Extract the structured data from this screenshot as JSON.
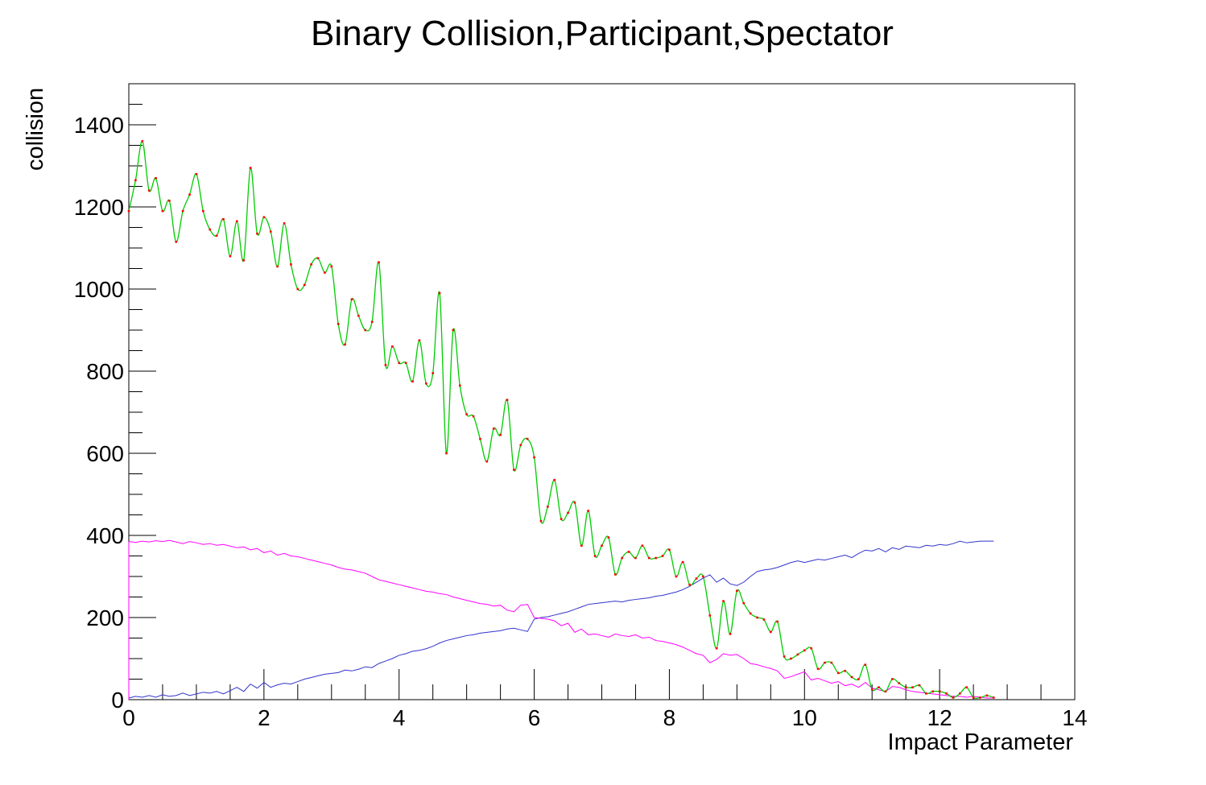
{
  "chart_data": {
    "type": "line",
    "title": "Binary Collision,Participant,Spectator",
    "xlabel": "Impact Parameter",
    "ylabel": "collision",
    "xlim": [
      0,
      14
    ],
    "ylim": [
      0,
      1500
    ],
    "x_ticks": [
      0,
      2,
      4,
      6,
      8,
      10,
      12,
      14
    ],
    "x_tick_labels": [
      "0",
      "2",
      "4",
      "6",
      "8",
      "10",
      "12",
      "14"
    ],
    "y_ticks": [
      0,
      200,
      400,
      600,
      800,
      1000,
      1200,
      1400
    ],
    "y_tick_labels": [
      "0",
      "200",
      "400",
      "600",
      "800",
      "1000",
      "1200",
      "1400"
    ],
    "grid": false,
    "legend": "none",
    "colors": {
      "binary_line": "#00cc00",
      "binary_markers": "#ff0000",
      "participant": "#ff00ff",
      "spectator": "#3333cc"
    },
    "series": [
      {
        "key": "binary",
        "style": "smooth-line-with-markers",
        "x": [
          0,
          0.1,
          0.2,
          0.3,
          0.4,
          0.5,
          0.6,
          0.7,
          0.8,
          0.9,
          1,
          1.1,
          1.2,
          1.3,
          1.4,
          1.5,
          1.6,
          1.7,
          1.8,
          1.9,
          2,
          2.1,
          2.2,
          2.3,
          2.4,
          2.5,
          2.6,
          2.7,
          2.8,
          2.9,
          3,
          3.1,
          3.2,
          3.3,
          3.4,
          3.5,
          3.6,
          3.7,
          3.8,
          3.9,
          4,
          4.1,
          4.2,
          4.3,
          4.4,
          4.5,
          4.6,
          4.7,
          4.8,
          4.9,
          5,
          5.1,
          5.2,
          5.3,
          5.4,
          5.5,
          5.6,
          5.7,
          5.8,
          5.9,
          6,
          6.1,
          6.2,
          6.3,
          6.4,
          6.5,
          6.6,
          6.7,
          6.8,
          6.9,
          7,
          7.1,
          7.2,
          7.3,
          7.4,
          7.5,
          7.6,
          7.7,
          7.8,
          7.9,
          8,
          8.1,
          8.2,
          8.3,
          8.4,
          8.5,
          8.6,
          8.7,
          8.8,
          8.9,
          9,
          9.1,
          9.2,
          9.3,
          9.4,
          9.5,
          9.6,
          9.7,
          9.8,
          9.9,
          10,
          10.1,
          10.2,
          10.3,
          10.4,
          10.5,
          10.6,
          10.7,
          10.8,
          10.9,
          11,
          11.1,
          11.2,
          11.3,
          11.4,
          11.5,
          11.6,
          11.7,
          11.8,
          11.9,
          12,
          12.1,
          12.2,
          12.3,
          12.4,
          12.5,
          12.6,
          12.7,
          12.8
        ],
        "values": [
          1190,
          1265,
          1360,
          1240,
          1270,
          1190,
          1215,
          1115,
          1190,
          1230,
          1280,
          1190,
          1145,
          1130,
          1170,
          1080,
          1165,
          1070,
          1295,
          1135,
          1175,
          1140,
          1055,
          1160,
          1060,
          1000,
          1010,
          1060,
          1075,
          1040,
          1055,
          915,
          865,
          975,
          935,
          900,
          920,
          1065,
          815,
          860,
          820,
          820,
          775,
          875,
          770,
          795,
          990,
          600,
          900,
          765,
          695,
          690,
          635,
          580,
          660,
          645,
          730,
          560,
          620,
          635,
          590,
          435,
          470,
          535,
          440,
          455,
          480,
          375,
          460,
          350,
          375,
          395,
          305,
          345,
          360,
          345,
          375,
          345,
          345,
          350,
          365,
          300,
          335,
          280,
          295,
          300,
          205,
          125,
          240,
          160,
          265,
          235,
          210,
          200,
          195,
          165,
          190,
          105,
          100,
          110,
          120,
          125,
          75,
          90,
          90,
          65,
          70,
          55,
          50,
          85,
          25,
          30,
          20,
          50,
          40,
          30,
          30,
          35,
          15,
          20,
          20,
          15,
          5,
          15,
          30,
          5,
          5,
          10,
          5
        ]
      },
      {
        "key": "participant",
        "style": "line",
        "x": [
          0,
          0.1,
          0.2,
          0.3,
          0.4,
          0.5,
          0.6,
          0.7,
          0.8,
          0.9,
          1,
          1.1,
          1.2,
          1.3,
          1.4,
          1.5,
          1.6,
          1.7,
          1.8,
          1.9,
          2,
          2.1,
          2.2,
          2.3,
          2.4,
          2.5,
          2.6,
          2.7,
          2.8,
          2.9,
          3,
          3.1,
          3.2,
          3.3,
          3.4,
          3.5,
          3.6,
          3.7,
          3.8,
          3.9,
          4,
          4.1,
          4.2,
          4.3,
          4.4,
          4.5,
          4.6,
          4.7,
          4.8,
          4.9,
          5,
          5.1,
          5.2,
          5.3,
          5.4,
          5.5,
          5.6,
          5.7,
          5.8,
          5.9,
          6,
          6.1,
          6.2,
          6.3,
          6.4,
          6.5,
          6.6,
          6.7,
          6.8,
          6.9,
          7,
          7.1,
          7.2,
          7.3,
          7.4,
          7.5,
          7.6,
          7.7,
          7.8,
          7.9,
          8,
          8.1,
          8.2,
          8.3,
          8.4,
          8.5,
          8.6,
          8.7,
          8.8,
          8.9,
          9,
          9.1,
          9.2,
          9.3,
          9.4,
          9.5,
          9.6,
          9.7,
          9.8,
          9.9,
          10,
          10.1,
          10.2,
          10.3,
          10.4,
          10.5,
          10.6,
          10.7,
          10.8,
          10.9,
          11,
          11.1,
          11.2,
          11.3,
          11.4,
          11.5,
          11.6,
          11.7,
          11.8,
          11.9,
          12,
          12.1,
          12.2,
          12.3,
          12.4,
          12.5,
          12.6,
          12.7,
          12.8
        ],
        "values": [
          385,
          383,
          386,
          384,
          387,
          385,
          388,
          384,
          380,
          385,
          382,
          378,
          380,
          376,
          378,
          374,
          370,
          372,
          365,
          368,
          358,
          362,
          352,
          356,
          350,
          348,
          344,
          340,
          336,
          332,
          328,
          322,
          318,
          316,
          312,
          308,
          300,
          292,
          288,
          284,
          280,
          276,
          272,
          268,
          264,
          262,
          258,
          256,
          250,
          246,
          242,
          238,
          234,
          232,
          228,
          230,
          218,
          214,
          230,
          232,
          200,
          198,
          196,
          192,
          180,
          186,
          164,
          172,
          158,
          160,
          156,
          152,
          160,
          156,
          154,
          158,
          150,
          152,
          144,
          142,
          138,
          134,
          128,
          120,
          112,
          108,
          90,
          98,
          112,
          108,
          110,
          100,
          88,
          85,
          80,
          76,
          70,
          52,
          56,
          62,
          68,
          48,
          52,
          46,
          40,
          44,
          34,
          38,
          30,
          42,
          28,
          24,
          20,
          32,
          30,
          24,
          20,
          18,
          16,
          14,
          12,
          10,
          8,
          8,
          6,
          8,
          6,
          4,
          4
        ]
      },
      {
        "key": "spectator",
        "style": "line",
        "x": [
          0,
          0.1,
          0.2,
          0.3,
          0.4,
          0.5,
          0.6,
          0.7,
          0.8,
          0.9,
          1,
          1.1,
          1.2,
          1.3,
          1.4,
          1.5,
          1.6,
          1.7,
          1.8,
          1.9,
          2,
          2.1,
          2.2,
          2.3,
          2.4,
          2.5,
          2.6,
          2.7,
          2.8,
          2.9,
          3,
          3.1,
          3.2,
          3.3,
          3.4,
          3.5,
          3.6,
          3.7,
          3.8,
          3.9,
          4,
          4.1,
          4.2,
          4.3,
          4.4,
          4.5,
          4.6,
          4.7,
          4.8,
          4.9,
          5,
          5.1,
          5.2,
          5.3,
          5.4,
          5.5,
          5.6,
          5.7,
          5.8,
          5.9,
          6,
          6.1,
          6.2,
          6.3,
          6.4,
          6.5,
          6.6,
          6.7,
          6.8,
          6.9,
          7,
          7.1,
          7.2,
          7.3,
          7.4,
          7.5,
          7.6,
          7.7,
          7.8,
          7.9,
          8,
          8.1,
          8.2,
          8.3,
          8.4,
          8.5,
          8.6,
          8.7,
          8.8,
          8.9,
          9,
          9.1,
          9.2,
          9.3,
          9.4,
          9.5,
          9.6,
          9.7,
          9.8,
          9.9,
          10,
          10.1,
          10.2,
          10.3,
          10.4,
          10.5,
          10.6,
          10.7,
          10.8,
          10.9,
          11,
          11.1,
          11.2,
          11.3,
          11.4,
          11.5,
          11.6,
          11.7,
          11.8,
          11.9,
          12,
          12.1,
          12.2,
          12.3,
          12.4,
          12.5,
          12.6,
          12.7,
          12.8
        ],
        "values": [
          4,
          8,
          6,
          10,
          6,
          12,
          8,
          10,
          16,
          10,
          14,
          18,
          16,
          20,
          14,
          22,
          30,
          20,
          38,
          28,
          42,
          30,
          36,
          40,
          38,
          44,
          50,
          54,
          58,
          62,
          64,
          66,
          72,
          70,
          74,
          80,
          78,
          88,
          94,
          100,
          108,
          112,
          118,
          120,
          124,
          130,
          138,
          144,
          148,
          152,
          156,
          158,
          162,
          164,
          166,
          168,
          172,
          174,
          170,
          166,
          196,
          200,
          202,
          206,
          210,
          214,
          220,
          226,
          232,
          234,
          236,
          238,
          240,
          238,
          242,
          244,
          246,
          248,
          252,
          254,
          258,
          262,
          268,
          276,
          286,
          296,
          304,
          286,
          296,
          282,
          278,
          286,
          300,
          312,
          316,
          318,
          322,
          328,
          334,
          338,
          334,
          338,
          342,
          340,
          344,
          348,
          352,
          346,
          356,
          364,
          362,
          368,
          360,
          370,
          366,
          374,
          372,
          370,
          376,
          374,
          378,
          376,
          380,
          386,
          382,
          384,
          386,
          386,
          386
        ]
      },
      {
        "key": "participant-left-edge",
        "style": "line",
        "x": [
          0,
          0
        ],
        "values": [
          0,
          385
        ]
      }
    ]
  }
}
